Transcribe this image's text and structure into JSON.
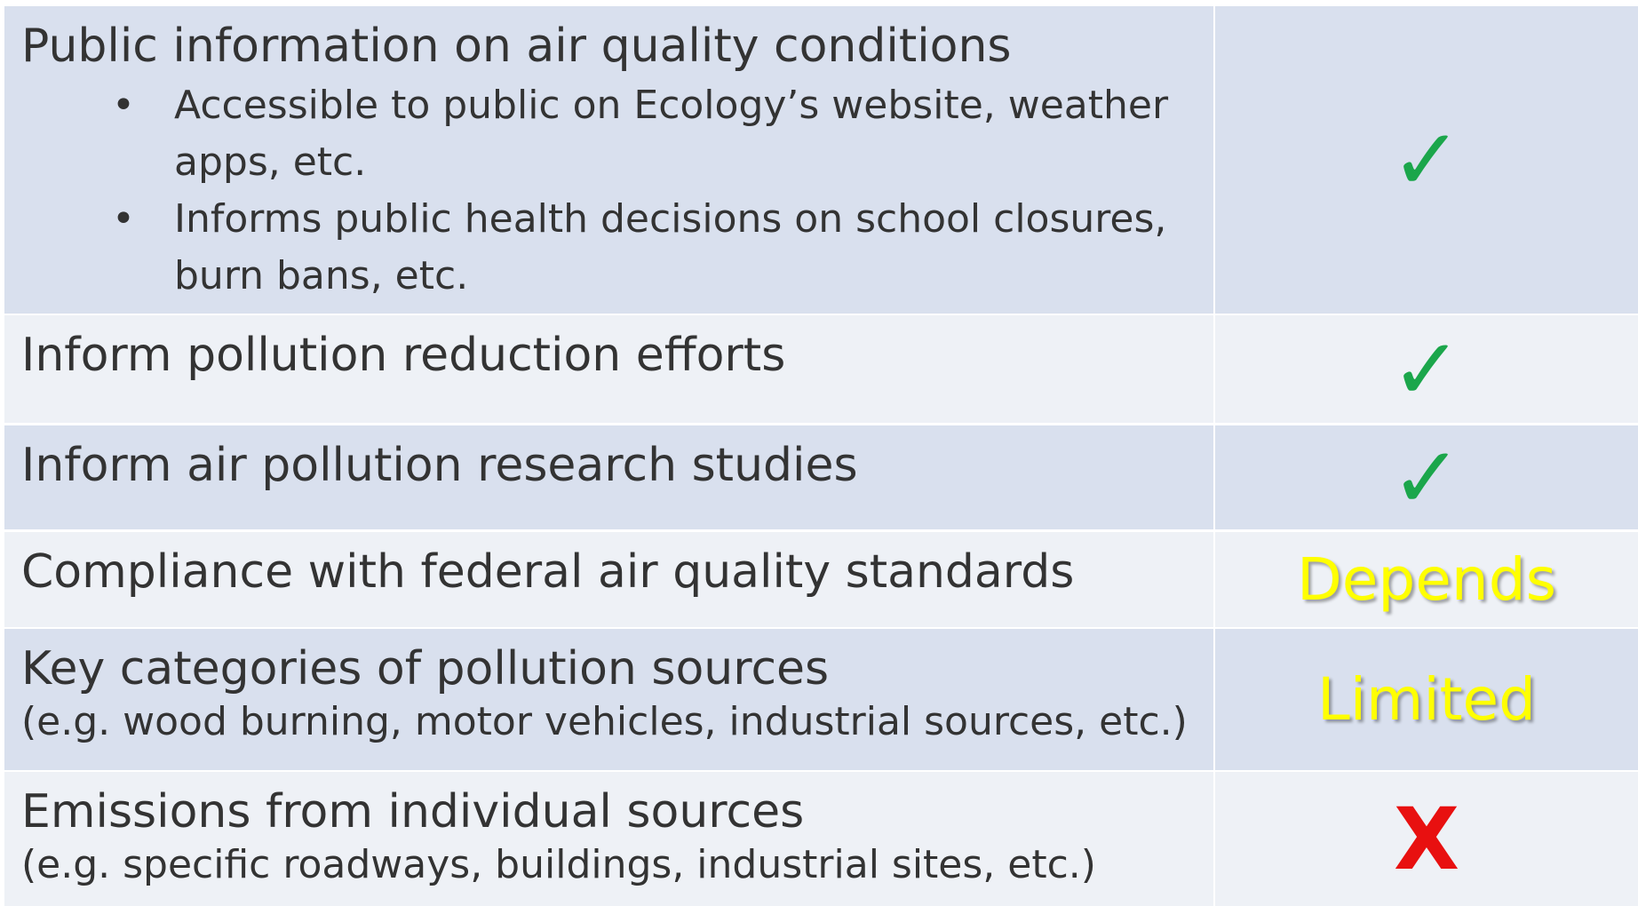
{
  "table": {
    "rows": [
      {
        "title": "Public information on air quality conditions",
        "bullets": [
          "Accessible to public on Ecology’s website, weather apps, etc.",
          "Informs public health decisions on school closures, burn bans, etc."
        ],
        "status": "✓",
        "color": "#1ba64b"
      },
      {
        "title": "Inform pollution reduction efforts",
        "status": "✓",
        "color": "#1ba64b"
      },
      {
        "title": "Inform air pollution research studies",
        "status": "✓",
        "color": "#1ba64b"
      },
      {
        "title": "Compliance with federal air quality standards",
        "status": "Depends",
        "color": "#ffff00"
      },
      {
        "title": "Key categories of pollution sources",
        "note": "(e.g. wood burning, motor vehicles, industrial sources, etc.)",
        "status": "Limited",
        "color": "#ffff00"
      },
      {
        "title": "Emissions from individual sources",
        "note": "(e.g. specific roadways, buildings, industrial sites, etc.)",
        "status": "X",
        "color": "#e81010"
      }
    ]
  }
}
